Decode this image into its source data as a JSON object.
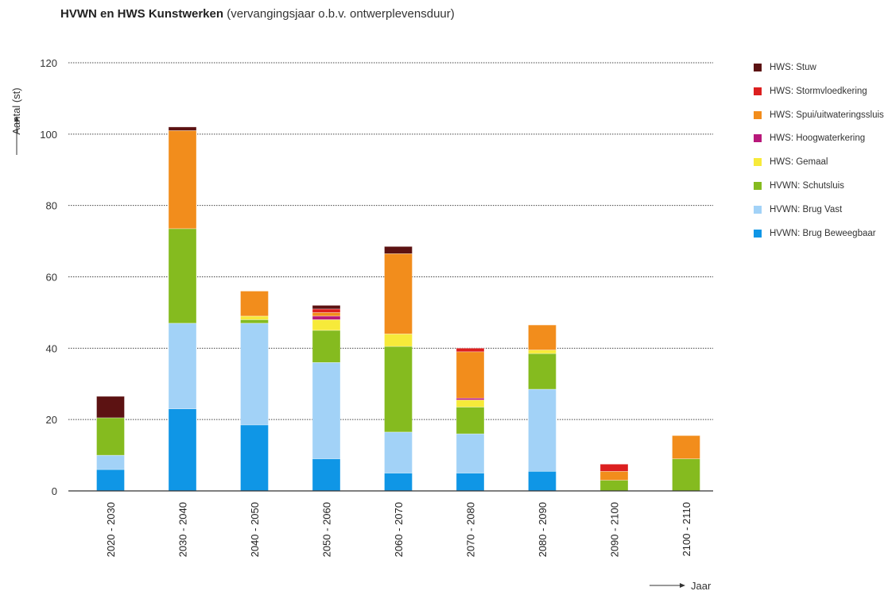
{
  "chart_data": {
    "type": "bar",
    "stacked": true,
    "title": "HVWN en HWS Kunstwerken",
    "subtitle": "(vervangingsjaar o.b.v. ontwerplevensduur)",
    "xlabel": "Jaar",
    "ylabel": "Aantal (st)",
    "ylim": [
      0,
      120
    ],
    "yticks": [
      0,
      20,
      40,
      60,
      80,
      100,
      120
    ],
    "grid": true,
    "legend_position": "right",
    "categories": [
      "2020 - 2030",
      "2030 - 2040",
      "2040 - 2050",
      "2050 - 2060",
      "2060 - 2070",
      "2070 - 2080",
      "2080 - 2090",
      "2090 - 2100",
      "2100 - 2110"
    ],
    "series": [
      {
        "name": "HVWN: Brug Beweegbaar",
        "color": "#0f96e6",
        "values": [
          6,
          23,
          18.5,
          9,
          5,
          5,
          5.5,
          0,
          0
        ]
      },
      {
        "name": "HVWN: Brug Vast",
        "color": "#a2d2f7",
        "values": [
          4,
          24,
          28.5,
          27,
          11.5,
          11,
          23,
          0,
          0
        ]
      },
      {
        "name": "HVWN: Schutsluis",
        "color": "#85bb1f",
        "values": [
          10.5,
          26.5,
          1,
          9,
          24,
          7.5,
          10,
          3,
          9
        ]
      },
      {
        "name": "HWS: Gemaal",
        "color": "#f7ea3a",
        "values": [
          0,
          0,
          1,
          3,
          3.5,
          2,
          1,
          0,
          0
        ]
      },
      {
        "name": "HWS: Hoogwaterkering",
        "color": "#b8187a",
        "values": [
          0,
          0,
          0,
          1,
          0,
          0.5,
          0,
          0,
          0
        ]
      },
      {
        "name": "HWS: Spui/uitwateringssluis",
        "color": "#f28d1c",
        "values": [
          0,
          27.5,
          7,
          1,
          22.5,
          13,
          7,
          2.5,
          6.5
        ]
      },
      {
        "name": "HWS: Stormvloedkering",
        "color": "#dc1f1f",
        "values": [
          0,
          0,
          0,
          1,
          0,
          1,
          0,
          2,
          0
        ]
      },
      {
        "name": "HWS: Stuw",
        "color": "#5c1212",
        "values": [
          6,
          1,
          0,
          1,
          2,
          0,
          0,
          0,
          0
        ]
      }
    ]
  }
}
